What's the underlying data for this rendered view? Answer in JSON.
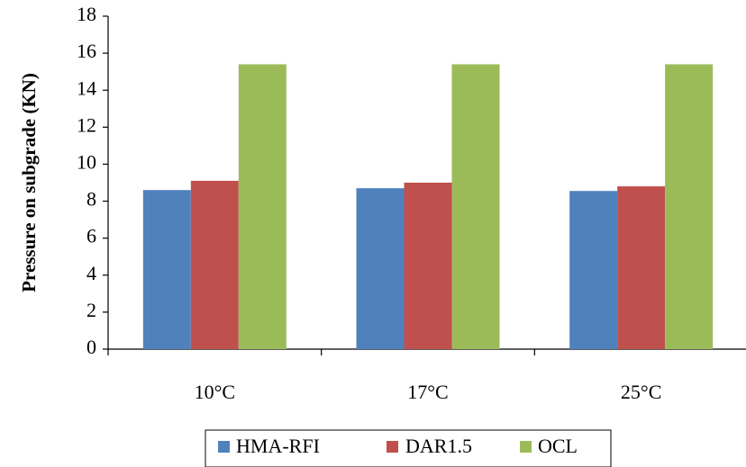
{
  "chart_data": {
    "type": "bar",
    "title": "",
    "xlabel": "",
    "ylabel": "Pressure on subgrade (KN)",
    "categories": [
      "10°C",
      "17°C",
      "25°C"
    ],
    "series": [
      {
        "name": "HMA-RFI",
        "color": "#4f81bd",
        "values": [
          8.6,
          8.7,
          8.55
        ]
      },
      {
        "name": "DAR1.5",
        "color": "#c0504d",
        "values": [
          9.1,
          9.0,
          8.8
        ]
      },
      {
        "name": "OCL",
        "color": "#9bbb59",
        "values": [
          15.4,
          15.4,
          15.4
        ]
      }
    ],
    "ylim": [
      0,
      18
    ],
    "yticks": [
      0,
      2,
      4,
      6,
      8,
      10,
      12,
      14,
      16,
      18
    ],
    "grid": false,
    "legend_position": "bottom"
  }
}
